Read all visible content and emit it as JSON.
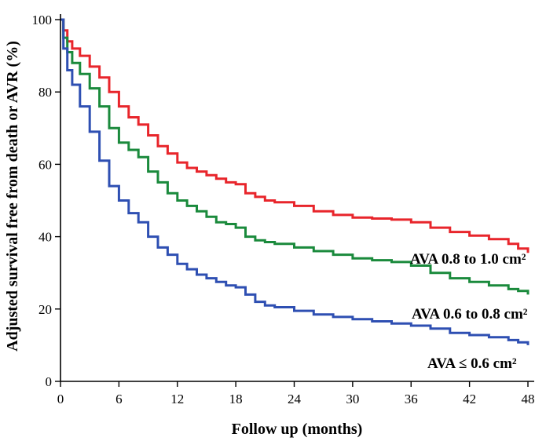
{
  "chart_data": {
    "type": "line",
    "step": true,
    "xlabel": "Follow up (months)",
    "ylabel": "Adjusted survival free from death or AVR (%)",
    "xlim": [
      0,
      48
    ],
    "ylim": [
      0,
      100
    ],
    "xticks": [
      0,
      6,
      12,
      18,
      24,
      30,
      36,
      42,
      48
    ],
    "yticks": [
      0,
      20,
      40,
      60,
      80,
      100
    ],
    "grid": false,
    "series": [
      {
        "name": "AVA 0.8 to 1.0 cm²",
        "color": "#e8252b",
        "x": [
          0,
          0.3,
          0.7,
          1.2,
          2,
          3,
          4,
          5,
          6,
          7,
          8,
          9,
          10,
          11,
          12,
          13,
          14,
          15,
          16,
          17,
          18,
          19,
          20,
          21,
          22,
          24,
          26,
          28,
          30,
          32,
          34,
          36,
          38,
          40,
          42,
          44,
          46,
          47,
          48
        ],
        "y": [
          100,
          97,
          94,
          92,
          90,
          87,
          84,
          80,
          76,
          73,
          71,
          68,
          65,
          63,
          60.5,
          59,
          58,
          57,
          56,
          55,
          54.5,
          52,
          51,
          50,
          49.5,
          48.5,
          47,
          46,
          45.3,
          45,
          44.7,
          44,
          42.5,
          41.3,
          40.3,
          39.3,
          38,
          36.7,
          35.5
        ]
      },
      {
        "name": "AVA 0.6 to 0.8 cm²",
        "color": "#1a8a3c",
        "x": [
          0,
          0.3,
          0.7,
          1.2,
          2,
          3,
          4,
          5,
          6,
          7,
          8,
          9,
          10,
          11,
          12,
          13,
          14,
          15,
          16,
          17,
          18,
          19,
          20,
          21,
          22,
          24,
          26,
          28,
          30,
          32,
          34,
          36,
          38,
          40,
          42,
          44,
          46,
          47,
          48
        ],
        "y": [
          100,
          95,
          91,
          88,
          85,
          81,
          76,
          70,
          66,
          64,
          62,
          58,
          55,
          52,
          50,
          48.5,
          47,
          45.5,
          44,
          43.5,
          42.5,
          40,
          39,
          38.5,
          38,
          37,
          36,
          35,
          34,
          33.5,
          33,
          32,
          30,
          28.5,
          27.5,
          26.5,
          25.5,
          25,
          24
        ]
      },
      {
        "name": "AVA ≤ 0.6 cm²",
        "color": "#2e4fb2",
        "x": [
          0,
          0.3,
          0.7,
          1.2,
          2,
          3,
          4,
          5,
          6,
          7,
          8,
          9,
          10,
          11,
          12,
          13,
          14,
          15,
          16,
          17,
          18,
          19,
          20,
          21,
          22,
          24,
          26,
          28,
          30,
          32,
          34,
          36,
          38,
          40,
          42,
          44,
          46,
          47,
          48
        ],
        "y": [
          100,
          92,
          86,
          82,
          76,
          69,
          61,
          54,
          50,
          46.5,
          44,
          40,
          37,
          35,
          32.5,
          31,
          29.5,
          28.5,
          27.5,
          26.5,
          26,
          24,
          22,
          21,
          20.5,
          19.5,
          18.5,
          17.8,
          17.2,
          16.6,
          16,
          15.4,
          14.6,
          13.4,
          12.8,
          12.2,
          11.4,
          10.8,
          10
        ]
      }
    ],
    "annotations": [
      {
        "text": "AVA 0.8 to 1.0 cm²",
        "series": 0
      },
      {
        "text": "AVA 0.6 to 0.8 cm²",
        "series": 1
      },
      {
        "text": "AVA ≤ 0.6 cm²",
        "series": 2
      }
    ]
  }
}
